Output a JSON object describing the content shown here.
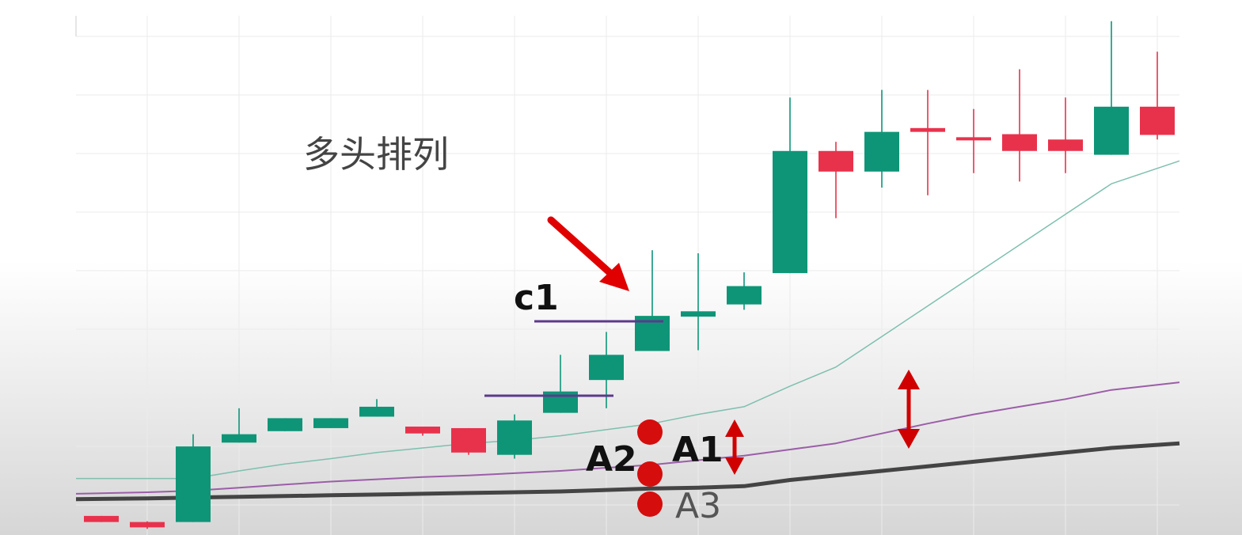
{
  "chart_data": {
    "type": "candlestick",
    "title": "多头排列",
    "candles": [
      {
        "open": 5,
        "close": -3,
        "high": 5,
        "low": -3
      },
      {
        "open": -3,
        "close": -10,
        "high": -2,
        "low": -12
      },
      {
        "open": -3,
        "close": 96,
        "high": 112,
        "low": -3
      },
      {
        "open": 101,
        "close": 112,
        "high": 146,
        "low": 101
      },
      {
        "open": 116,
        "close": 133,
        "high": 133,
        "low": 116
      },
      {
        "open": 120,
        "close": 133,
        "high": 133,
        "low": 120
      },
      {
        "open": 135,
        "close": 148,
        "high": 158,
        "low": 135
      },
      {
        "open": 122,
        "close": 113,
        "high": 122,
        "low": 110
      },
      {
        "open": 120,
        "close": 88,
        "high": 120,
        "low": 85
      },
      {
        "open": 85,
        "close": 130,
        "high": 138,
        "low": 80
      },
      {
        "open": 140,
        "close": 168,
        "high": 216,
        "low": 140
      },
      {
        "open": 183,
        "close": 216,
        "high": 246,
        "low": 146
      },
      {
        "open": 221,
        "close": 267,
        "high": 353,
        "low": 221
      },
      {
        "open": 266,
        "close": 273,
        "high": 349,
        "low": 222
      },
      {
        "open": 282,
        "close": 306,
        "high": 324,
        "low": 275
      },
      {
        "open": 323,
        "close": 483,
        "high": 553,
        "low": 323
      },
      {
        "open": 483,
        "close": 456,
        "high": 495,
        "low": 395
      },
      {
        "open": 456,
        "close": 508,
        "high": 563,
        "low": 435
      },
      {
        "open": 513,
        "close": 508,
        "high": 563,
        "low": 425
      },
      {
        "open": 501,
        "close": 498,
        "high": 538,
        "low": 454
      },
      {
        "open": 505,
        "close": 483,
        "high": 590,
        "low": 443
      },
      {
        "open": 498,
        "close": 483,
        "high": 553,
        "low": 454
      },
      {
        "open": 478,
        "close": 541,
        "high": 653,
        "low": 478
      },
      {
        "open": 541,
        "close": 504,
        "high": 613,
        "low": 498
      }
    ],
    "moving_averages": [
      {
        "color": "#7fbfae",
        "width": 1.5,
        "values": [
          54,
          54,
          54,
          64,
          73,
          80,
          88,
          94,
          100,
          104,
          110,
          118,
          126,
          138,
          148,
          175,
          200,
          240,
          280,
          320,
          360,
          400,
          440,
          470
        ]
      },
      {
        "color": "#9b5ea8",
        "width": 2,
        "values": [
          34,
          36,
          38,
          42,
          46,
          50,
          53,
          56,
          58,
          61,
          64,
          68,
          72,
          78,
          84,
          92,
          100,
          113,
          126,
          138,
          148,
          158,
          170,
          180
        ]
      },
      {
        "color": "#444444",
        "width": 5,
        "values": [
          27,
          28,
          29,
          30,
          31,
          32,
          33,
          34,
          35,
          36,
          37,
          39,
          41,
          42,
          44,
          52,
          58,
          64,
          70,
          76,
          82,
          88,
          94,
          100
        ]
      }
    ],
    "ylim": [
      -20,
      660
    ],
    "grid": true,
    "annotations": {
      "c1": "c1",
      "a1": "A1",
      "a2": "A2",
      "a3": "A3"
    }
  },
  "colors": {
    "bull": "#0e9577",
    "bear": "#e8324c",
    "arrow": "#e00000",
    "dot": "#d50d0d",
    "level_line": "#5c3a8c",
    "grid": "#ebebeb"
  }
}
